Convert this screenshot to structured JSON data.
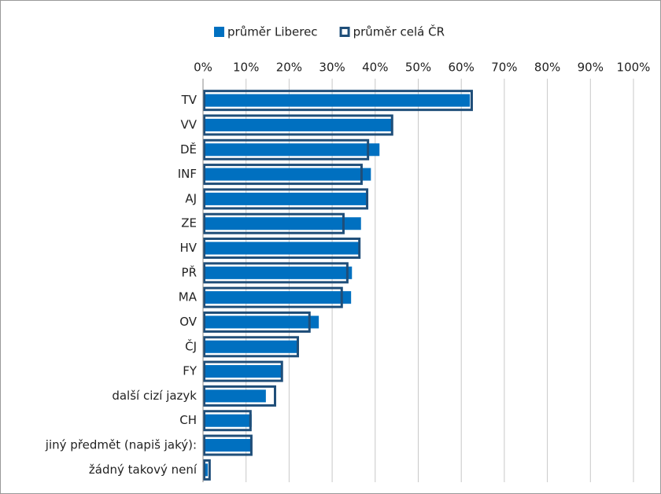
{
  "chart_data": {
    "type": "bar",
    "orientation": "horizontal",
    "legend": "top",
    "grid": true,
    "categories": [
      "TV",
      "VV",
      "DĚ",
      "INF",
      "AJ",
      "ZE",
      "HV",
      "PŘ",
      "MA",
      "OV",
      "ČJ",
      "FY",
      "další cizí jazyk",
      "CH",
      "jiný předmět (napiš jaký):",
      "žádný takový není"
    ],
    "series": [
      {
        "name": "průměr Liberec",
        "color": "#0070c0",
        "style": "filled",
        "values": [
          62,
          44,
          41,
          39,
          38,
          36.7,
          36.2,
          34.6,
          34.4,
          26.9,
          21.9,
          18.1,
          14.6,
          11.3,
          11.3,
          1.1
        ]
      },
      {
        "name": "průměr celá ČR",
        "color": "#1f4e79",
        "style": "outline",
        "values": [
          62.7,
          44.2,
          38.6,
          37.1,
          38.4,
          32.9,
          36.6,
          33.8,
          32.5,
          25,
          22.3,
          18.6,
          17,
          11.3,
          11.5,
          1.8
        ]
      }
    ],
    "xlim": [
      0,
      100
    ],
    "xticks": [
      {
        "value": 0,
        "label": "0%"
      },
      {
        "value": 10,
        "label": "10%"
      },
      {
        "value": 20,
        "label": "20%"
      },
      {
        "value": 30,
        "label": "30%"
      },
      {
        "value": 40,
        "label": "40%"
      },
      {
        "value": 50,
        "label": "50%"
      },
      {
        "value": 60,
        "label": "60%"
      },
      {
        "value": 70,
        "label": "70%"
      },
      {
        "value": 80,
        "label": "80%"
      },
      {
        "value": 90,
        "label": "90%"
      },
      {
        "value": 100,
        "label": "100%"
      }
    ]
  }
}
